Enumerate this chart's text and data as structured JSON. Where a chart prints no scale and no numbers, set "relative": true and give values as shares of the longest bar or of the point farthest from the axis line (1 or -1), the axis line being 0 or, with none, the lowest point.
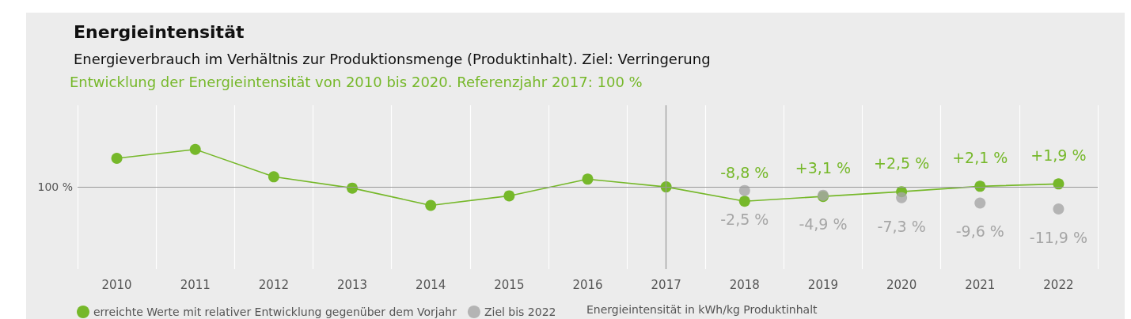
{
  "chart_data": {
    "type": "line",
    "title": "Energieintensität",
    "subtitle": "Energieverbrauch im Verhältnis zur Produktionsmenge (Produktinhalt). Ziel: Verringerung",
    "annotations": [
      "Entwicklung der Energieintensität von 2010 bis 2020. Referenzjahr 2017: 100 %",
      "Energieintensität in kWh/kg Produktinhalt",
      "100 %",
      {
        "text": "-8,8 %",
        "x": "2018",
        "y": 0.13
      },
      {
        "text": "+3,1 %",
        "x": "2019",
        "y": 0.21
      },
      {
        "text": "+2,5 %",
        "x": "2020",
        "y": 0.29
      },
      {
        "text": "+2,1 %",
        "x": "2021",
        "y": 0.38
      },
      {
        "text": "+1,9 %",
        "x": "2022",
        "y": 0.42
      },
      {
        "text": "-2,5 %",
        "x": "2018",
        "y": 0.31
      },
      {
        "text": "-4,9 %",
        "x": "2019",
        "y": 0.23
      },
      {
        "text": "-7,3 %",
        "x": "2020",
        "y": 0.19
      },
      {
        "text": "-9,6 %",
        "x": "2021",
        "y": 0.1
      },
      {
        "text": "-11,9 %",
        "x": "2022",
        "y": 0
      }
    ],
    "categories": [
      "2010",
      "2011",
      "2012",
      "2013",
      "2014",
      "2015",
      "2016",
      "2017",
      "2018",
      "2019",
      "2020",
      "2021",
      "2022"
    ],
    "relative": true,
    "grid": "x",
    "legend": "bottom left",
    "marker": "circle",
    "line_style": "solid",
    "series": [
      {
        "name": "erreichte Werte mit relativer Entwicklung gegenüber dem Vorjahr",
        "color": "#76b82a",
        "values": [
          0.85,
          1,
          0.54,
          0.35,
          0.06,
          0.22,
          0.5,
          0.37,
          0.13,
          0.21,
          0.29,
          0.38,
          0.42
        ]
      },
      {
        "name": "Ziel bis 2022",
        "type": "scatter",
        "color": "#a6a6a6",
        "values": [
          null,
          null,
          null,
          null,
          null,
          null,
          null,
          null,
          0.31,
          0.23,
          0.19,
          0.1,
          0
        ]
      }
    ],
    "ref_lines": [
      {
        "axis": "y",
        "value": 0.37,
        "color": "#999999"
      },
      {
        "axis": "x",
        "value": "2017",
        "color": "#999999"
      }
    ]
  }
}
